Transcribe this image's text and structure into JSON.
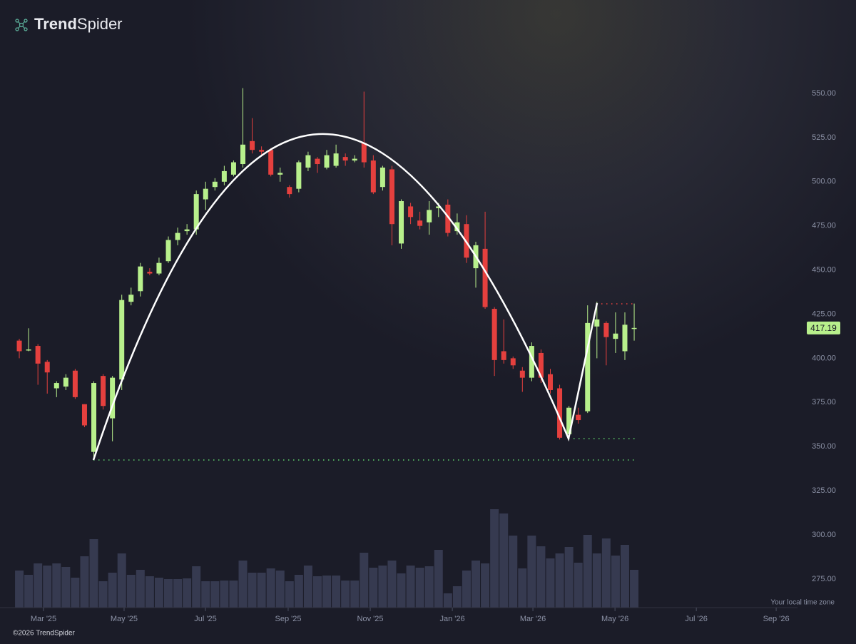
{
  "brand": {
    "bold": "Trend",
    "light": "Spider"
  },
  "copyright": "©2026 TrendSpider",
  "timezone_note": "Your local time zone",
  "chart_data": {
    "type": "candlestick",
    "x": [
      0,
      1,
      2,
      3,
      4,
      5,
      6,
      7,
      8,
      9,
      10,
      11,
      12,
      13,
      14,
      15,
      16,
      17,
      18,
      19,
      20,
      21,
      22,
      23,
      24,
      25,
      26,
      27,
      28,
      29,
      30,
      31,
      32,
      33,
      34,
      35,
      36,
      37,
      38,
      39,
      40,
      41,
      42,
      43,
      44,
      45,
      46,
      47,
      48,
      49,
      50,
      51,
      52,
      53,
      54,
      55,
      56,
      57,
      58,
      59,
      60,
      61,
      62,
      63,
      64,
      65,
      66
    ],
    "open": [
      410,
      404.5,
      407,
      398,
      383,
      384,
      393,
      374,
      347,
      390,
      366,
      388,
      432,
      438,
      449,
      448,
      455,
      467,
      472,
      473,
      490,
      497,
      500,
      504,
      510,
      523,
      518,
      518,
      504,
      497,
      496,
      508,
      513,
      508,
      509,
      514,
      512,
      522,
      512,
      497,
      507,
      465,
      486,
      478,
      477,
      485,
      487,
      472,
      476,
      451,
      462,
      428,
      404,
      400,
      393,
      389,
      403,
      391,
      383,
      357,
      368,
      370,
      418,
      420,
      411,
      404,
      417
    ],
    "high": [
      411,
      417,
      408,
      399,
      387,
      391,
      394,
      374,
      387,
      391,
      390,
      436,
      440,
      454,
      451,
      457,
      469,
      474,
      476,
      495,
      500,
      502,
      509,
      512,
      553,
      536,
      520,
      519,
      508,
      498,
      512,
      517,
      514,
      518,
      521,
      516,
      515,
      551,
      515,
      509,
      509,
      490,
      488,
      483,
      489,
      488,
      490,
      482,
      481,
      466,
      483,
      429,
      422,
      401,
      395,
      409,
      405,
      394,
      385,
      373,
      372,
      430,
      432,
      421,
      426,
      426,
      431
    ],
    "low": [
      400,
      404,
      385,
      380,
      378,
      382,
      377,
      361,
      343,
      371,
      353,
      382,
      430,
      435,
      447,
      447,
      454,
      464,
      470,
      470,
      484,
      495,
      498,
      503,
      508,
      516,
      515,
      503,
      500,
      491,
      494,
      506,
      505,
      507,
      508,
      509,
      511,
      508,
      493,
      495,
      464,
      462,
      476,
      473,
      470,
      480,
      469,
      470,
      454,
      440,
      428,
      390,
      397,
      394,
      381,
      387,
      386,
      380,
      354,
      355,
      363,
      369,
      400,
      396,
      403,
      399,
      410
    ],
    "close": [
      404,
      405,
      397,
      392,
      386,
      389,
      378,
      362,
      386,
      373,
      389,
      433,
      436,
      452,
      448,
      454,
      467,
      471,
      473,
      493,
      496,
      500,
      506,
      511,
      521,
      518,
      517,
      504,
      505,
      493,
      511,
      515,
      510,
      515,
      516,
      512,
      513,
      511,
      494,
      508,
      476,
      489,
      480,
      475,
      484,
      486,
      471,
      477,
      457,
      464,
      429,
      399,
      399,
      396,
      389,
      407,
      389,
      382,
      355,
      372,
      365,
      420,
      422,
      412,
      414,
      419,
      417.19
    ],
    "volume": [
      52,
      46,
      62,
      59,
      62,
      57,
      42,
      72,
      96,
      37,
      49,
      76,
      46,
      53,
      44,
      42,
      40,
      40,
      41,
      58,
      37,
      37,
      38,
      38,
      66,
      49,
      49,
      55,
      52,
      37,
      46,
      59,
      44,
      45,
      45,
      38,
      38,
      77,
      56,
      59,
      66,
      48,
      59,
      56,
      58,
      81,
      20,
      30,
      52,
      66,
      62,
      138,
      132,
      101,
      55,
      101,
      86,
      69,
      76,
      85,
      63,
      102,
      76,
      97,
      73,
      88,
      53
    ],
    "up_color": "#b8f08c",
    "down_color": "#e5403e",
    "volume_color": "#363a50",
    "xlim": [
      -2.07,
      83.53
    ],
    "xticks": [
      {
        "value": 2.6,
        "label": "Mar '25"
      },
      {
        "value": 11.25,
        "label": "May '25"
      },
      {
        "value": 19.98,
        "label": "Jul '25"
      },
      {
        "value": 28.86,
        "label": "Sep '25"
      },
      {
        "value": 37.67,
        "label": "Nov '25"
      },
      {
        "value": 46.48,
        "label": "Jan '26"
      },
      {
        "value": 55.13,
        "label": "Mar '26"
      },
      {
        "value": 63.94,
        "label": "May '26"
      },
      {
        "value": 72.67,
        "label": "Jul '26"
      },
      {
        "value": 81.24,
        "label": "Sep '26"
      }
    ],
    "ylim": [
      258.8,
      602.9
    ],
    "yticks": [
      {
        "value": 275,
        "label": "275.00"
      },
      {
        "value": 300,
        "label": "300.00"
      },
      {
        "value": 325,
        "label": "325.00"
      },
      {
        "value": 350,
        "label": "350.00"
      },
      {
        "value": 375,
        "label": "375.00"
      },
      {
        "value": 400,
        "label": "400.00"
      },
      {
        "value": 425,
        "label": "425.00"
      },
      {
        "value": 450,
        "label": "450.00"
      },
      {
        "value": 475,
        "label": "475.00"
      },
      {
        "value": 500,
        "label": "500.00"
      },
      {
        "value": 525,
        "label": "525.00"
      },
      {
        "value": 550,
        "label": "550.00"
      }
    ]
  }
}
